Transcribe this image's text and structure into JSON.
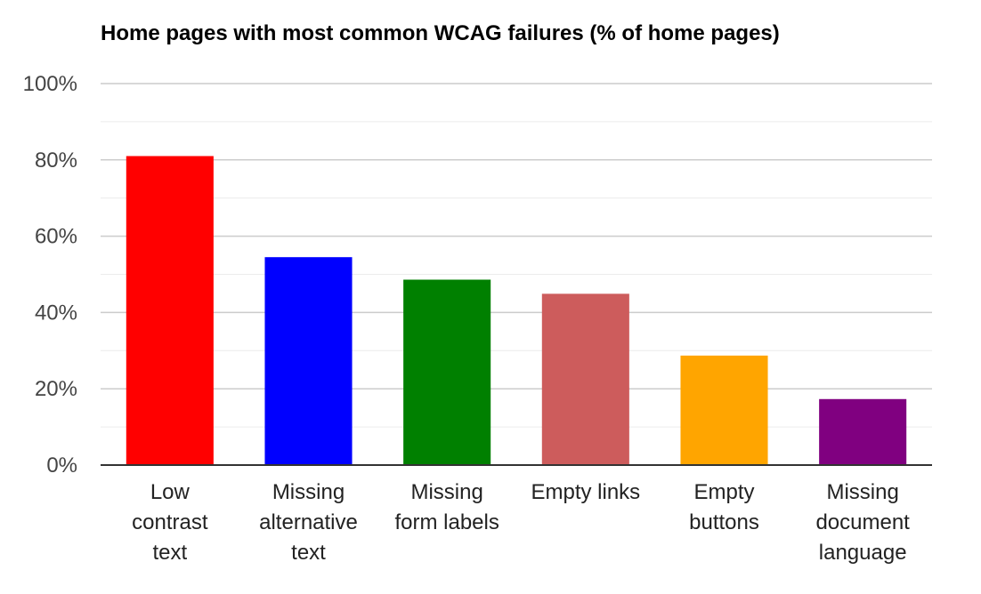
{
  "chart_data": {
    "type": "bar",
    "title": "Home pages with most common WCAG failures (% of home pages)",
    "xlabel": "",
    "ylabel": "",
    "ylim": [
      0,
      100
    ],
    "y_ticks": [
      {
        "value": 0,
        "label": "0%"
      },
      {
        "value": 20,
        "label": "20%"
      },
      {
        "value": 40,
        "label": "40%"
      },
      {
        "value": 60,
        "label": "60%"
      },
      {
        "value": 80,
        "label": "80%"
      },
      {
        "value": 100,
        "label": "100%"
      }
    ],
    "minor_gridlines": true,
    "legend": "none",
    "categories": [
      {
        "id": "low-contrast-text",
        "label_lines": [
          "Low",
          "contrast",
          "text"
        ]
      },
      {
        "id": "missing-alternative-text",
        "label_lines": [
          "Missing",
          "alternative",
          "text"
        ]
      },
      {
        "id": "missing-form-labels",
        "label_lines": [
          "Missing",
          "form labels"
        ]
      },
      {
        "id": "empty-links",
        "label_lines": [
          "Empty links"
        ]
      },
      {
        "id": "empty-buttons",
        "label_lines": [
          "Empty",
          "buttons"
        ]
      },
      {
        "id": "missing-document-language",
        "label_lines": [
          "Missing",
          "document",
          "language"
        ]
      }
    ],
    "values": [
      81.0,
      54.5,
      48.6,
      44.9,
      28.7,
      17.3
    ],
    "colors": [
      "#ff0000",
      "#0000ff",
      "#008000",
      "#cd5c5c",
      "#ffa500",
      "#800080"
    ]
  }
}
